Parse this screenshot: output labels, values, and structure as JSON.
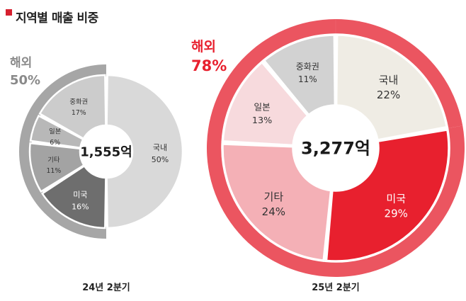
{
  "header": {
    "title": "지역별 매출 비중"
  },
  "chart_data": [
    {
      "type": "pie",
      "title": "24년 2분기",
      "center_label": "1,555억",
      "overseas": {
        "label": "해외",
        "value": "50%"
      },
      "slices": [
        {
          "name": "국내",
          "value": 50,
          "label": "50%",
          "color": "#d9d9d9",
          "text_color": "#333333"
        },
        {
          "name": "미국",
          "value": 16,
          "label": "16%",
          "color": "#6e6e6e",
          "text_color": "#ffffff"
        },
        {
          "name": "기타",
          "value": 11,
          "label": "11%",
          "color": "#a3a3a3",
          "text_color": "#333333"
        },
        {
          "name": "일본",
          "value": 6,
          "label": "6%",
          "color": "#b8b8b8",
          "text_color": "#333333"
        },
        {
          "name": "중화권",
          "value": 17,
          "label": "17%",
          "color": "#cccccc",
          "text_color": "#333333"
        }
      ],
      "outer_ring_color": "#a6a6a6"
    },
    {
      "type": "pie",
      "title": "25년 2분기",
      "center_label": "3,277억",
      "overseas": {
        "label": "해외",
        "value": "78%"
      },
      "slices": [
        {
          "name": "국내",
          "value": 22,
          "label": "22%",
          "color": "#efece4",
          "text_color": "#333333"
        },
        {
          "name": "미국",
          "value": 29,
          "label": "29%",
          "color": "#e8202e",
          "text_color": "#ffffff"
        },
        {
          "name": "기타",
          "value": 24,
          "label": "24%",
          "color": "#f4b0b6",
          "text_color": "#333333"
        },
        {
          "name": "일본",
          "value": 13,
          "label": "13%",
          "color": "#f7dadd",
          "text_color": "#333333"
        },
        {
          "name": "중화권",
          "value": 11,
          "label": "11%",
          "color": "#d2d2d2",
          "text_color": "#333333"
        }
      ],
      "outer_ring_color": "#eb5560"
    }
  ]
}
